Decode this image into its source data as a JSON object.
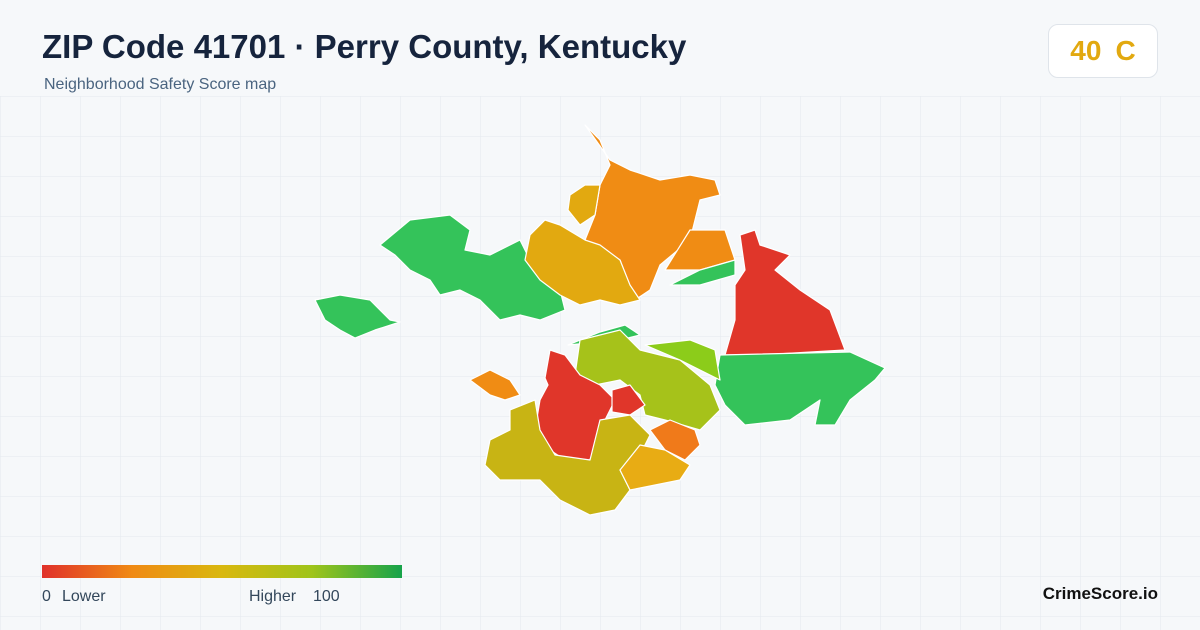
{
  "header": {
    "title": "ZIP Code 41701 · Perry County, Kentucky",
    "subtitle": "Neighborhood Safety Score map"
  },
  "score": {
    "value": 40,
    "grade": "C"
  },
  "legend": {
    "min": 0,
    "min_label": "Lower",
    "max_label": "Higher",
    "max": 100
  },
  "footer": {
    "brand": "CrimeScore.io"
  }
}
